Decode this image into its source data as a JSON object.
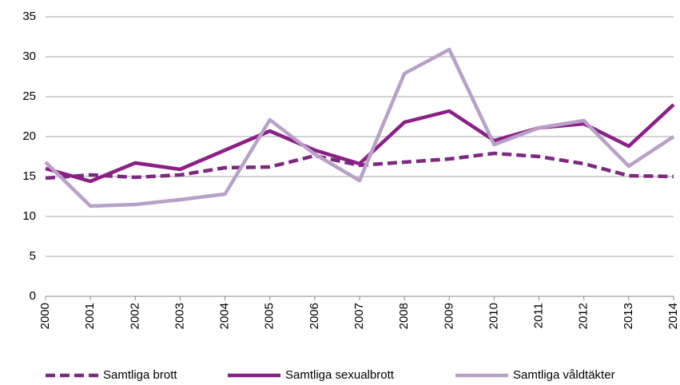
{
  "chart_data": {
    "type": "line",
    "categories": [
      "2000",
      "2001",
      "2002",
      "2003",
      "2004",
      "2005",
      "2006",
      "2007",
      "2008",
      "2009",
      "2010",
      "2011",
      "2012",
      "2013",
      "2014"
    ],
    "series": [
      {
        "name": "Samtliga brott",
        "color": "#7b2a7f",
        "style": "dashed",
        "values": [
          14.8,
          15.2,
          14.9,
          15.2,
          16.1,
          16.2,
          17.6,
          16.4,
          16.8,
          17.2,
          17.9,
          17.5,
          16.6,
          15.1,
          15.0
        ]
      },
      {
        "name": "Samtliga sexualbrott",
        "color": "#8b1f86",
        "style": "solid",
        "values": [
          16.0,
          14.4,
          16.7,
          15.9,
          18.3,
          20.7,
          18.3,
          16.6,
          21.8,
          23.2,
          19.5,
          21.1,
          21.6,
          18.8,
          24.0
        ]
      },
      {
        "name": "Samtliga våldtäkter",
        "color": "#b9a0c8",
        "style": "solid",
        "values": [
          16.8,
          11.3,
          11.5,
          12.1,
          12.8,
          22.1,
          17.8,
          14.5,
          27.9,
          30.9,
          19.0,
          21.1,
          22.0,
          16.3,
          20.0
        ]
      }
    ],
    "ylim": [
      0,
      35
    ],
    "yticks": [
      0,
      5,
      10,
      15,
      20,
      25,
      30,
      35
    ],
    "grid": true,
    "legend": "bottom"
  }
}
